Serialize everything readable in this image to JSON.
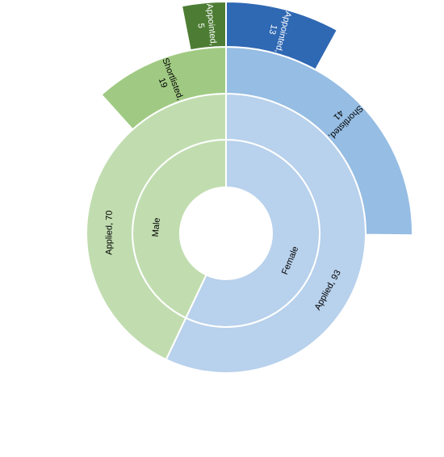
{
  "chart_data": {
    "type": "sunburst",
    "title": "",
    "segments": [
      {
        "level": 0,
        "name": "Male",
        "label": "Male",
        "value": 70,
        "color": "#c1ddb0",
        "text_color": "#000000"
      },
      {
        "level": 0,
        "name": "Female",
        "label": "Female",
        "value": 93,
        "color": "#b8d1ec",
        "text_color": "#000000"
      },
      {
        "level": 1,
        "parent": "Male",
        "name": "Applied",
        "label": "Applied, 70",
        "value": 70,
        "color": "#c1ddb0",
        "text_color": "#000000"
      },
      {
        "level": 1,
        "parent": "Female",
        "name": "Applied",
        "label": "Applied, 93",
        "value": 93,
        "color": "#b8d1ec",
        "text_color": "#000000"
      },
      {
        "level": 2,
        "parent": "Male",
        "name": "Shortlisted",
        "label": [
          "Shortlisted,",
          "19"
        ],
        "value": 19,
        "color": "#a0ca83",
        "text_color": "#000000"
      },
      {
        "level": 2,
        "parent": "Female",
        "name": "Shortlisted",
        "label": [
          "Shortlisted,",
          "41"
        ],
        "value": 41,
        "color": "#96bde3",
        "text_color": "#000000"
      },
      {
        "level": 3,
        "parent": "Male",
        "name": "Appointed",
        "label": [
          "Appointed,",
          "5"
        ],
        "value": 5,
        "color": "#4d7d34",
        "text_color": "#ffffff"
      },
      {
        "level": 3,
        "parent": "Female",
        "name": "Appointed",
        "label": [
          "Appointed,",
          "13"
        ],
        "value": 13,
        "color": "#2f68b3",
        "text_color": "#ffffff"
      }
    ]
  }
}
